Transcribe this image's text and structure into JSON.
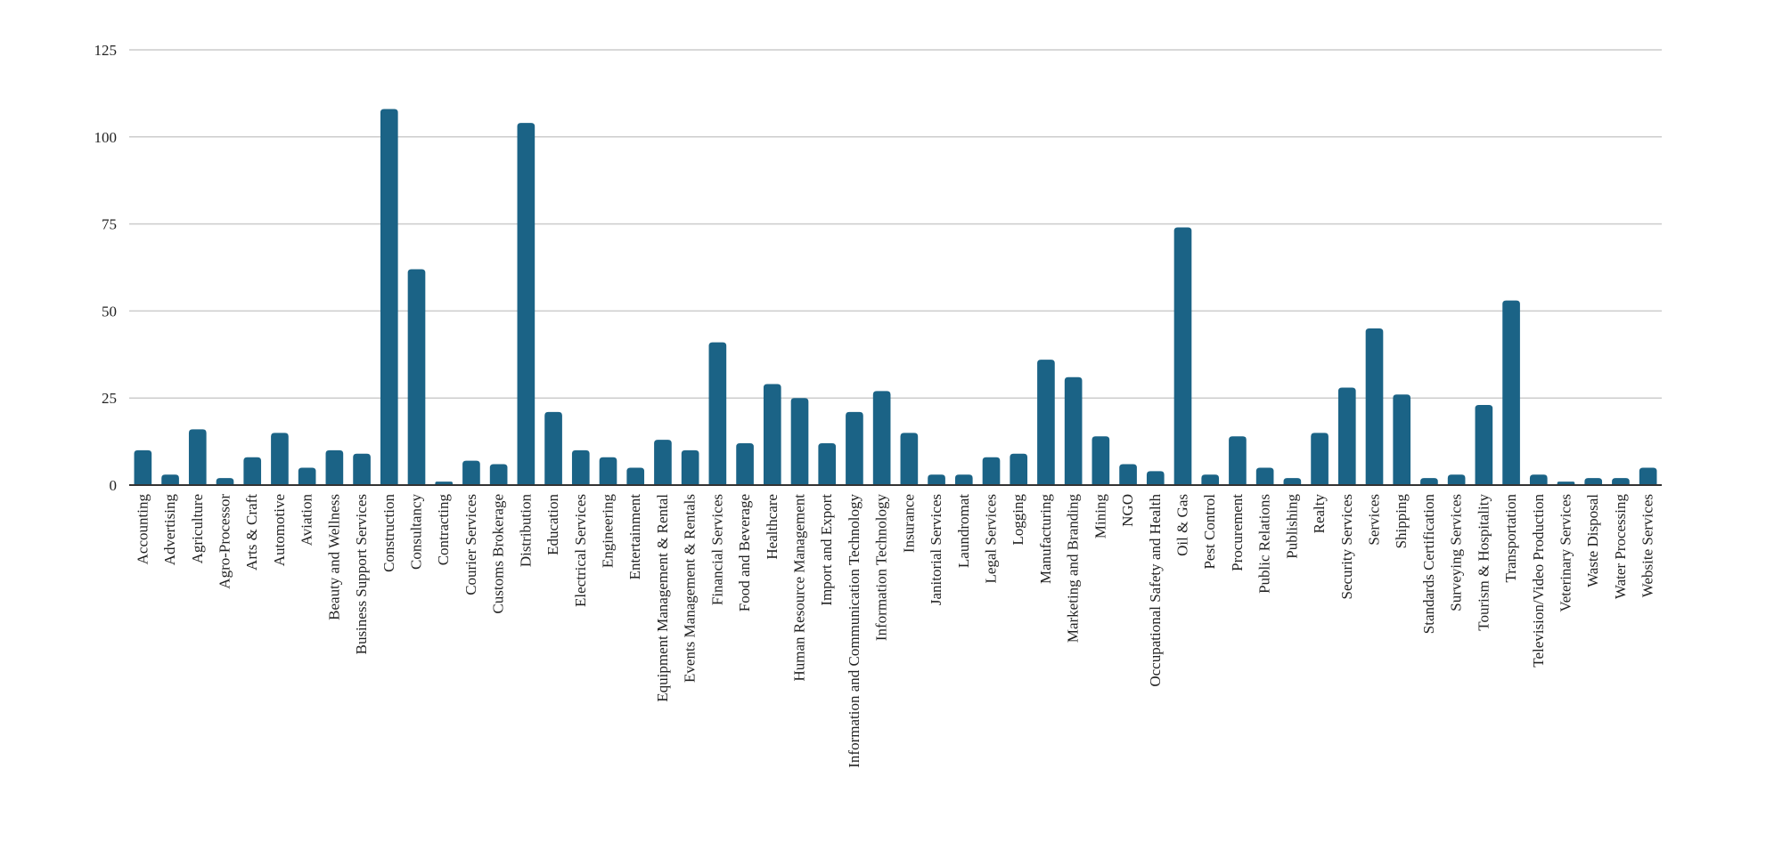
{
  "chart_data": {
    "type": "bar",
    "title": "",
    "xlabel": "",
    "ylabel": "",
    "ylim": [
      0,
      125
    ],
    "yticks": [
      0,
      25,
      50,
      75,
      100,
      125
    ],
    "grid": true,
    "legend": "none",
    "bar_color": "#1b6386",
    "categories": [
      "Accounting",
      "Advertising",
      "Agriculture",
      "Agro-Processor",
      "Arts & Craft",
      "Automotive",
      "Aviation",
      "Beauty and Wellness",
      "Business Support Services",
      "Construction",
      "Consultancy",
      "Contracting",
      "Courier Services",
      "Customs Brokerage",
      "Distribution",
      "Education",
      "Electrical Services",
      "Engineering",
      "Entertainment",
      "Equipment Management & Rental",
      "Events Management & Rentals",
      "Financial Services",
      "Food and Beverage",
      "Healthcare",
      "Human Resource Management",
      "Import and Export",
      "Information and Communication Technology",
      "Information Technology",
      "Insurance",
      "Janitorial Services",
      "Laundromat",
      "Legal Services",
      "Logging",
      "Manufacturing",
      "Marketing and Branding",
      "Mining",
      "NGO",
      "Occupational Safety and Health",
      "Oil & Gas",
      "Pest Control",
      "Procurement",
      "Public Relations",
      "Publishing",
      "Realty",
      "Security Services",
      "Services",
      "Shipping",
      "Standards Certification",
      "Surveying Services",
      "Tourism & Hospitality",
      "Transportation",
      "Television/Video Production",
      "Veterinary Services",
      "Waste Disposal",
      "Water Processing",
      "Website Services"
    ],
    "values": [
      10,
      3,
      16,
      2,
      8,
      15,
      5,
      10,
      9,
      108,
      62,
      1,
      7,
      6,
      104,
      21,
      10,
      8,
      5,
      13,
      10,
      41,
      12,
      29,
      25,
      12,
      21,
      27,
      15,
      3,
      3,
      8,
      9,
      36,
      31,
      14,
      6,
      4,
      74,
      3,
      14,
      5,
      2,
      15,
      28,
      45,
      26,
      2,
      3,
      23,
      53,
      3,
      1,
      2,
      2,
      5
    ]
  }
}
